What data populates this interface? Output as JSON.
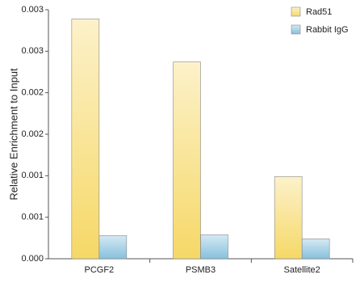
{
  "chart_data": {
    "type": "bar",
    "y_label": "Relative Enrichment to Input",
    "categories": [
      "PCGF2",
      "PSMB3",
      "Satellite2"
    ],
    "series": [
      {
        "name": "Rad51",
        "color": "#f6d867",
        "values": [
          0.00289,
          0.00237,
          0.00099
        ]
      },
      {
        "name": "Rabbit IgG",
        "color": "#86c1dc",
        "values": [
          0.00028,
          0.00029,
          0.00024
        ]
      }
    ],
    "ylim": [
      0,
      0.003
    ],
    "yticks": [
      {
        "value": 0,
        "label": "0.000"
      },
      {
        "value": 0.0005,
        "label": "0.001"
      },
      0.001,
      {
        "value": 0.0015,
        "label": "0.002"
      },
      0.002,
      {
        "value": 0.0025,
        "label": "0.003"
      },
      0.003
    ],
    "legend": "top-right"
  }
}
